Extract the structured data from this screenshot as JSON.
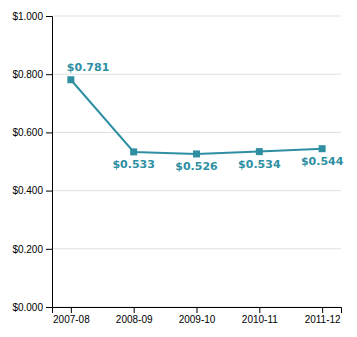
{
  "chart_data": {
    "type": "line",
    "categories": [
      "2007-08",
      "2008-09",
      "2009-10",
      "2010-11",
      "2011-12"
    ],
    "values": [
      0.781,
      0.533,
      0.526,
      0.534,
      0.544
    ],
    "value_labels": [
      "$0.781",
      "$0.533",
      "$0.526",
      "$0.534",
      "$0.544"
    ],
    "color": "#2e8fa3",
    "marker": "square",
    "ylim": [
      0.0,
      1.0
    ],
    "yticks": [
      {
        "value": 0.0,
        "label": "$0.000"
      },
      {
        "value": 0.2,
        "label": "$0.200"
      },
      {
        "value": 0.4,
        "label": "$0.400"
      },
      {
        "value": 0.6,
        "label": "$0.600"
      },
      {
        "value": 0.8,
        "label": "$0.800"
      },
      {
        "value": 1.0,
        "label": "$1.000"
      }
    ],
    "grid": true
  }
}
